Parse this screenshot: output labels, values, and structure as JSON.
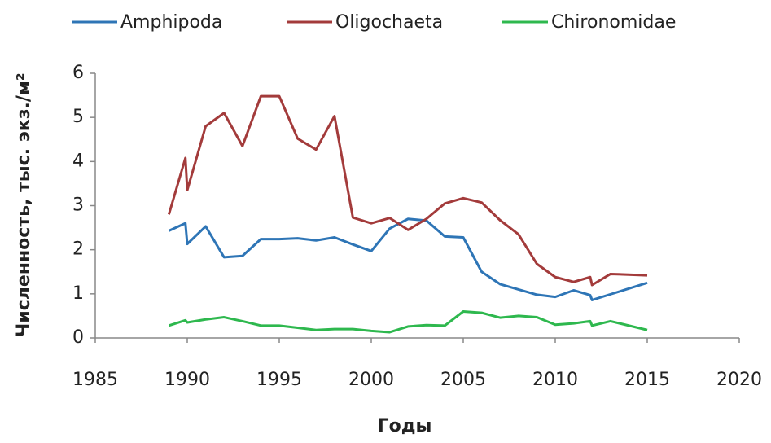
{
  "chart_data": {
    "type": "line",
    "x_label": "Годы",
    "y_label": "Численность, тыс. экз./м²",
    "x": [
      1989,
      1989.9,
      1990,
      1991,
      1992,
      1993,
      1994,
      1995,
      1996,
      1997,
      1998,
      1999,
      2000,
      2001,
      2002,
      2003,
      2004,
      2005,
      2006,
      2007,
      2008,
      2009,
      2010,
      2011,
      2011.9,
      2012,
      2013,
      2015
    ],
    "series": [
      {
        "name": "Amphipoda",
        "color": "#2e75b6",
        "values": [
          2.43,
          2.6,
          2.13,
          2.53,
          1.83,
          1.86,
          2.24,
          2.24,
          2.26,
          2.21,
          2.28,
          2.12,
          1.97,
          2.48,
          2.7,
          2.66,
          2.3,
          2.28,
          1.5,
          1.22,
          1.1,
          0.98,
          0.93,
          1.08,
          0.97,
          0.86,
          0.99,
          1.25
        ]
      },
      {
        "name": "Oligochaeta",
        "color": "#a33b3b",
        "values": [
          2.8,
          4.08,
          3.35,
          4.8,
          5.1,
          4.35,
          5.48,
          5.48,
          4.52,
          4.27,
          5.03,
          2.73,
          2.6,
          2.72,
          2.45,
          2.7,
          3.05,
          3.17,
          3.07,
          2.67,
          2.35,
          1.68,
          1.38,
          1.27,
          1.38,
          1.2,
          1.45,
          1.42
        ]
      },
      {
        "name": "Chironomidae",
        "color": "#2eb84e",
        "values": [
          0.28,
          0.4,
          0.35,
          0.42,
          0.47,
          0.38,
          0.28,
          0.28,
          0.23,
          0.18,
          0.2,
          0.2,
          0.16,
          0.13,
          0.26,
          0.29,
          0.28,
          0.6,
          0.57,
          0.46,
          0.5,
          0.47,
          0.3,
          0.33,
          0.38,
          0.28,
          0.38,
          0.18
        ]
      }
    ],
    "xlim": [
      1985,
      2020
    ],
    "xticks": [
      1985,
      1990,
      1995,
      2000,
      2005,
      2010,
      2015,
      2020
    ],
    "ylim": [
      0,
      6
    ],
    "yticks": [
      0,
      1,
      2,
      3,
      4,
      5,
      6
    ],
    "grid": false,
    "legend": "top"
  }
}
